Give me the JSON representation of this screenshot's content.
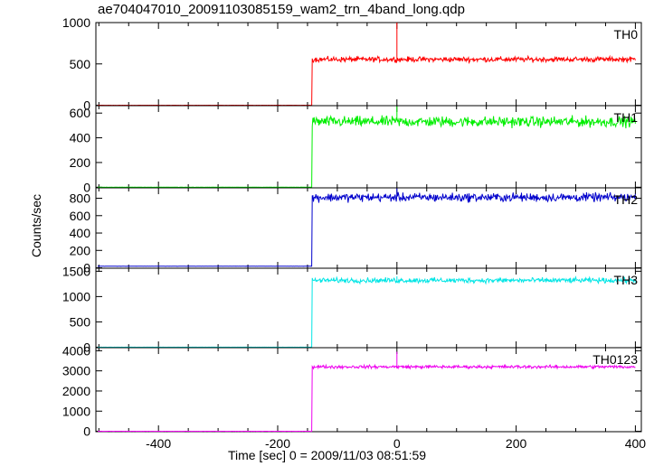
{
  "chart_data": {
    "type": "line",
    "title": "ae704047010_20091103085159_wam2_trn_4band_long.qdp",
    "xlabel": "Time [sec] 0 = 2009/11/03 08:51:59",
    "ylabel": "Counts/sec",
    "xlim": [
      -505,
      410
    ],
    "x_ticks": [
      -400,
      -200,
      0,
      200,
      400
    ],
    "step_time": -142,
    "grid": false,
    "panels": [
      {
        "name": "TH0",
        "color": "#ff0000",
        "ylim": [
          -5,
          1000
        ],
        "y_ticks": [
          0,
          500,
          1000
        ],
        "pre_level": 0,
        "post_level": 555,
        "noise": 22,
        "spike_x": 0,
        "spike_y": 1000
      },
      {
        "name": "TH1",
        "color": "#00ee00",
        "ylim": [
          -5,
          660
        ],
        "y_ticks": [
          0,
          200,
          400,
          600
        ],
        "pre_level": 0,
        "post_level": 530,
        "noise": 30,
        "spike_x": 0,
        "spike_y": 655
      },
      {
        "name": "TH2",
        "color": "#0000cc",
        "ylim": [
          -5,
          920
        ],
        "y_ticks": [
          0,
          200,
          400,
          600,
          800
        ],
        "pre_level": 18,
        "post_level": 810,
        "noise": 35,
        "spike_x": 0,
        "spike_y": 915
      },
      {
        "name": "TH3",
        "color": "#00e5e5",
        "ylim": [
          -10,
          1560
        ],
        "y_ticks": [
          0,
          500,
          1000,
          1500
        ],
        "pre_level": 0,
        "post_level": 1320,
        "noise": 35,
        "spike_x": 0,
        "spike_y": 1400
      },
      {
        "name": "TH0123",
        "color": "#ee00ee",
        "ylim": [
          -20,
          4150
        ],
        "y_ticks": [
          0,
          1000,
          2000,
          3000,
          4000
        ],
        "pre_level": 0,
        "post_level": 3200,
        "noise": 55,
        "spike_x": 0,
        "spike_y": 3950
      }
    ]
  }
}
